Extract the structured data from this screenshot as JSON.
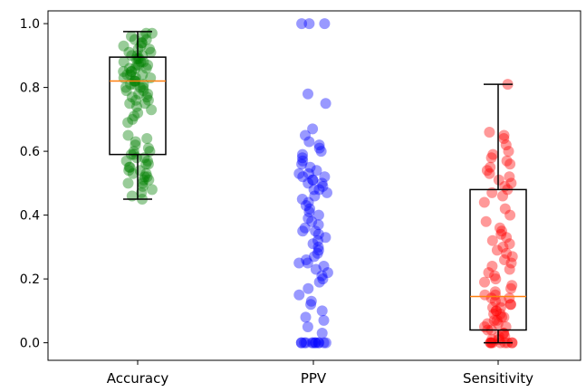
{
  "chart_data": {
    "type": "box",
    "categories": [
      "Accuracy",
      "PPV",
      "Sensitivity"
    ],
    "ylim": [
      -0.055,
      1.04
    ],
    "yticks": [
      "0.0",
      "0.2",
      "0.4",
      "0.6",
      "0.8",
      "1.0"
    ],
    "grid": false,
    "title": "",
    "xlabel": "",
    "ylabel": "",
    "series": [
      {
        "category": "Accuracy",
        "color": "#008000",
        "box": {
          "whisker_low": 0.45,
          "q1": 0.59,
          "median": 0.82,
          "q3": 0.895,
          "whisker_high": 0.975,
          "show": true
        },
        "points": [
          0.45,
          0.46,
          0.47,
          0.48,
          0.49,
          0.5,
          0.5,
          0.51,
          0.51,
          0.52,
          0.52,
          0.53,
          0.53,
          0.54,
          0.54,
          0.55,
          0.55,
          0.56,
          0.56,
          0.57,
          0.57,
          0.58,
          0.58,
          0.59,
          0.59,
          0.6,
          0.6,
          0.61,
          0.62,
          0.63,
          0.64,
          0.65,
          0.69,
          0.7,
          0.71,
          0.72,
          0.73,
          0.74,
          0.75,
          0.75,
          0.76,
          0.76,
          0.77,
          0.77,
          0.78,
          0.78,
          0.79,
          0.79,
          0.8,
          0.8,
          0.8,
          0.81,
          0.81,
          0.81,
          0.82,
          0.82,
          0.82,
          0.83,
          0.83,
          0.83,
          0.84,
          0.84,
          0.84,
          0.85,
          0.85,
          0.85,
          0.86,
          0.86,
          0.86,
          0.87,
          0.87,
          0.87,
          0.88,
          0.88,
          0.88,
          0.89,
          0.89,
          0.89,
          0.9,
          0.9,
          0.9,
          0.91,
          0.91,
          0.92,
          0.92,
          0.93,
          0.93,
          0.94,
          0.94,
          0.95,
          0.95,
          0.96,
          0.96,
          0.97,
          0.97
        ]
      },
      {
        "category": "PPV",
        "color": "#0000ff",
        "box": {
          "whisker_low": 0,
          "q1": 0,
          "median": 0,
          "q3": 0,
          "whisker_high": 0,
          "show": false
        },
        "points": [
          0,
          0,
          0,
          0,
          0,
          0,
          0,
          0,
          0,
          0,
          0,
          0,
          0.03,
          0.05,
          0.07,
          0.08,
          0.1,
          0.12,
          0.13,
          0.15,
          0.17,
          0.19,
          0.2,
          0.21,
          0.22,
          0.23,
          0.24,
          0.25,
          0.25,
          0.26,
          0.27,
          0.28,
          0.29,
          0.3,
          0.31,
          0.32,
          0.33,
          0.34,
          0.35,
          0.35,
          0.36,
          0.37,
          0.38,
          0.39,
          0.4,
          0.41,
          0.42,
          0.43,
          0.44,
          0.45,
          0.46,
          0.47,
          0.48,
          0.48,
          0.49,
          0.5,
          0.5,
          0.51,
          0.51,
          0.52,
          0.52,
          0.53,
          0.53,
          0.54,
          0.55,
          0.56,
          0.57,
          0.58,
          0.59,
          0.6,
          0.61,
          0.62,
          0.63,
          0.65,
          0.67,
          0.75,
          0.78,
          1.0,
          1.0,
          1.0
        ]
      },
      {
        "category": "Sensitivity",
        "color": "#ff0000",
        "box": {
          "whisker_low": 0.0,
          "q1": 0.04,
          "median": 0.145,
          "q3": 0.48,
          "whisker_high": 0.81,
          "show": true
        },
        "points": [
          0,
          0,
          0,
          0,
          0,
          0,
          0,
          0,
          0,
          0.01,
          0.01,
          0.02,
          0.02,
          0.03,
          0.03,
          0.04,
          0.04,
          0.05,
          0.05,
          0.06,
          0.06,
          0.07,
          0.07,
          0.08,
          0.08,
          0.09,
          0.09,
          0.1,
          0.1,
          0.11,
          0.11,
          0.12,
          0.12,
          0.13,
          0.13,
          0.14,
          0.14,
          0.15,
          0.15,
          0.16,
          0.17,
          0.18,
          0.19,
          0.2,
          0.21,
          0.22,
          0.23,
          0.24,
          0.25,
          0.26,
          0.27,
          0.28,
          0.29,
          0.3,
          0.31,
          0.32,
          0.33,
          0.34,
          0.35,
          0.36,
          0.38,
          0.4,
          0.42,
          0.44,
          0.46,
          0.47,
          0.48,
          0.49,
          0.5,
          0.51,
          0.52,
          0.53,
          0.54,
          0.55,
          0.56,
          0.57,
          0.58,
          0.59,
          0.6,
          0.62,
          0.64,
          0.65,
          0.66,
          0.81
        ]
      }
    ]
  }
}
